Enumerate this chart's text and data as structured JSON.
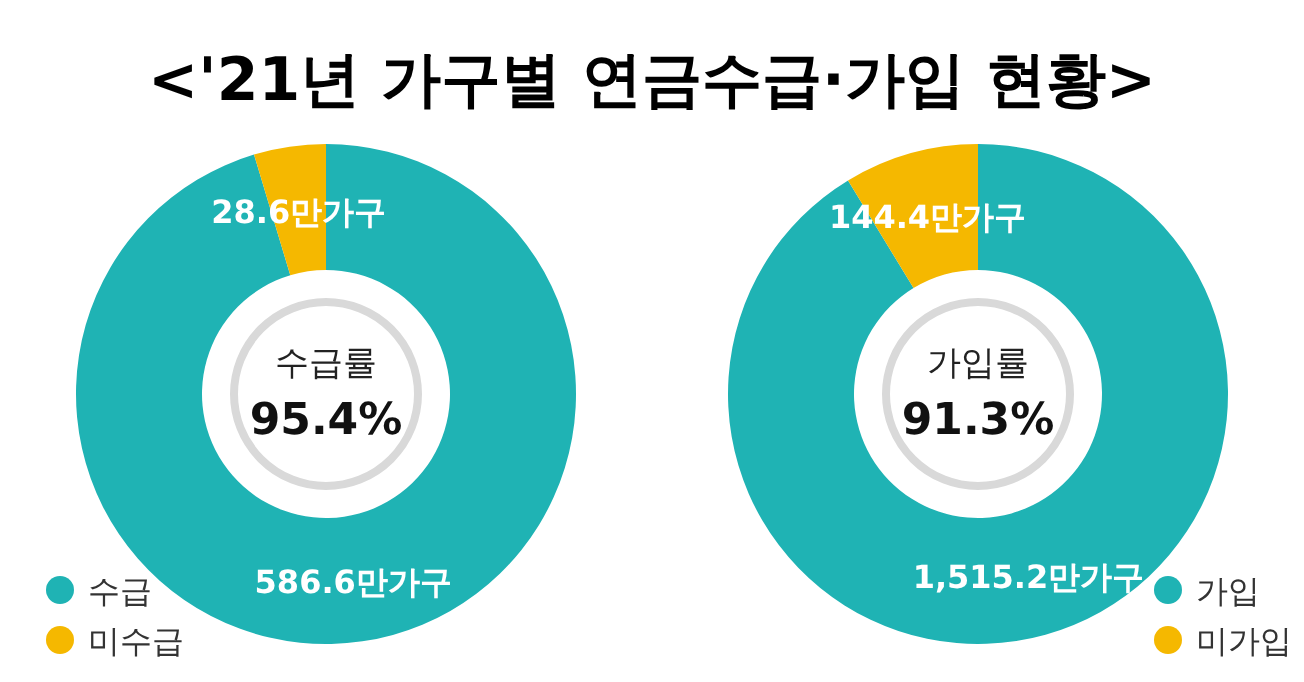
{
  "chart_data": [
    {
      "type": "donut",
      "title": "<'21년 가구별 연금수급·가입 현황>",
      "categories": [
        "수급",
        "미수급"
      ],
      "values": [
        586.6,
        28.6
      ],
      "colors": [
        "#1fb3b4",
        "#f5b800"
      ],
      "value_labels": [
        "586.6만가구",
        "28.6만가구"
      ],
      "annotations": [
        "수급률",
        "95.4%"
      ],
      "legend": "bottom left"
    },
    {
      "type": "donut",
      "categories": [
        "가입",
        "미가입"
      ],
      "values": [
        1515.2,
        144.4
      ],
      "colors": [
        "#1fb3b4",
        "#f5b800"
      ],
      "value_labels": [
        "1,515.2만가구",
        "144.4만가구"
      ],
      "annotations": [
        "가입률",
        "91.3%"
      ],
      "legend": "bottom right"
    }
  ]
}
